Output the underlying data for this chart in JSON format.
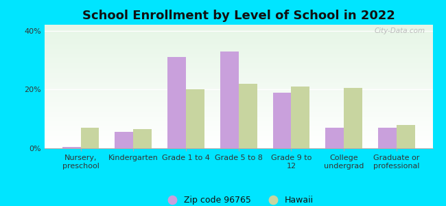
{
  "title": "School Enrollment by Level of School in 2022",
  "categories": [
    "Nursery,\npreschool",
    "Kindergarten",
    "Grade 1 to 4",
    "Grade 5 to 8",
    "Grade 9 to\n12",
    "College\nundergrad",
    "Graduate or\nprofessional"
  ],
  "zip_values": [
    0.5,
    5.5,
    31.0,
    33.0,
    19.0,
    7.0,
    7.0
  ],
  "hawaii_values": [
    7.0,
    6.5,
    20.0,
    22.0,
    21.0,
    20.5,
    8.0
  ],
  "zip_color": "#c9a0dc",
  "hawaii_color": "#c8d5a0",
  "background_color": "#00e5ff",
  "ylim": [
    0,
    42
  ],
  "yticks": [
    0,
    20,
    40
  ],
  "ytick_labels": [
    "0%",
    "20%",
    "40%"
  ],
  "legend_zip_label": "Zip code 96765",
  "legend_hawaii_label": "Hawaii",
  "watermark": "City-Data.com",
  "bar_width": 0.35,
  "title_fontsize": 13,
  "tick_fontsize": 8.0
}
